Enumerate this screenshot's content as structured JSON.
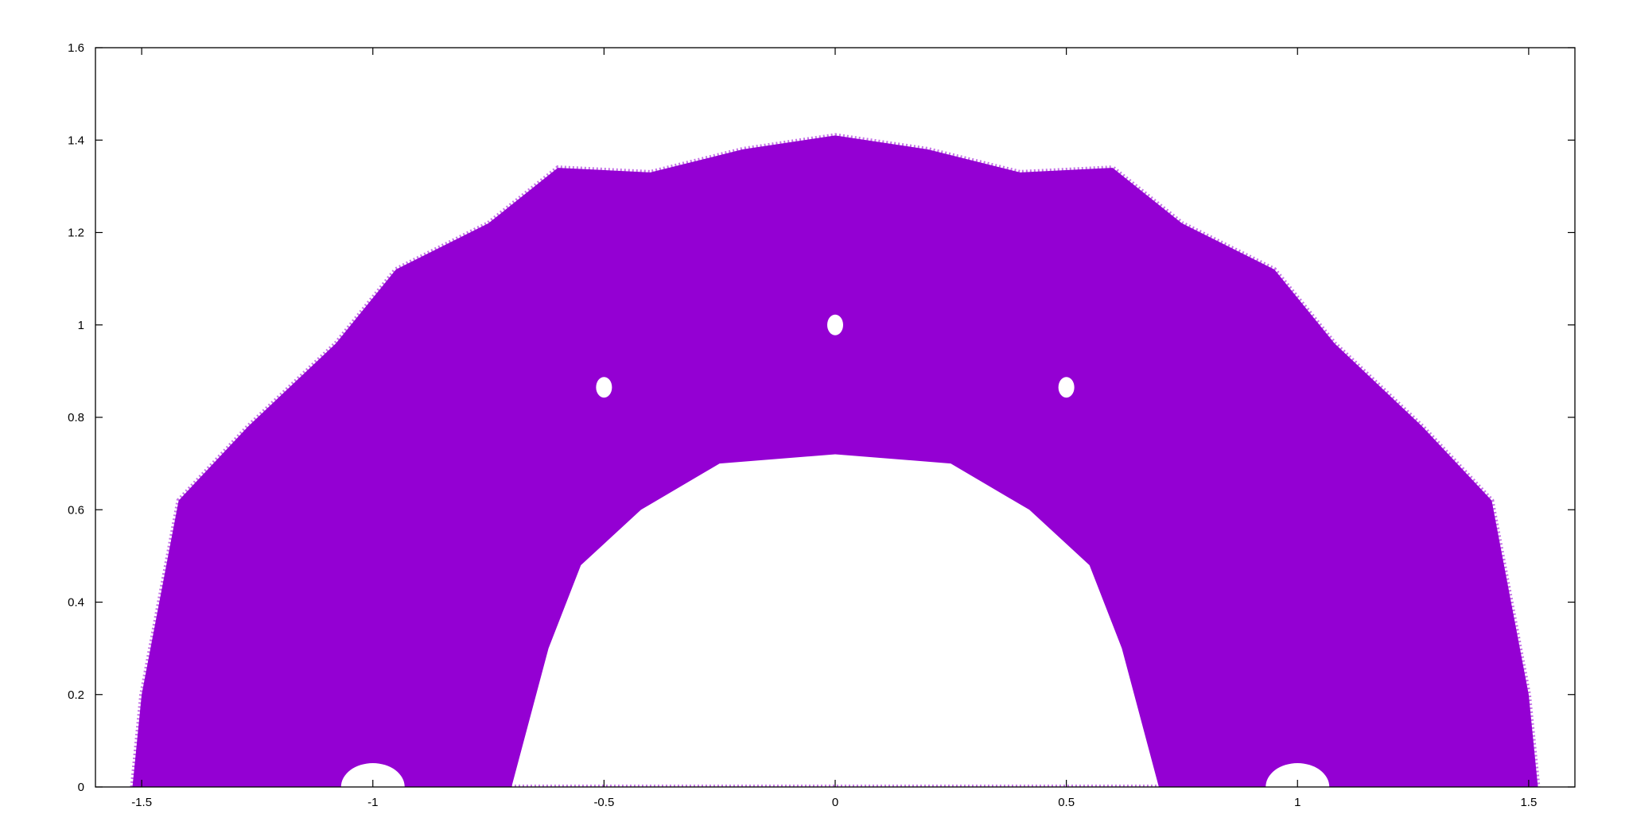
{
  "chart_data": {
    "type": "scatter",
    "title": "",
    "xlabel": "",
    "ylabel": "",
    "xlim": [
      -1.6,
      1.6
    ],
    "ylim": [
      0,
      1.6
    ],
    "xticks": [
      -1.5,
      -1,
      -0.5,
      0,
      0.5,
      1,
      1.5
    ],
    "xtick_labels": [
      "-1.5",
      "-1",
      "-0.5",
      "0",
      "0.5",
      "1",
      "1.5"
    ],
    "yticks": [
      0,
      0.2,
      0.4,
      0.6,
      0.8,
      1,
      1.2,
      1.4,
      1.6
    ],
    "ytick_labels": [
      "0",
      "0.2",
      "0.4",
      "0.6",
      "0.8",
      "1",
      "1.2",
      "1.4",
      "1.6"
    ],
    "grid": false,
    "legend": "none",
    "series": [
      {
        "color": "#9400d3",
        "marker": "dot",
        "description_points": "dense fractal point cloud, symmetric about x = 0",
        "outer_boundary": [
          [
            -1.52,
            0.0
          ],
          [
            -1.5,
            0.2
          ],
          [
            -1.42,
            0.62
          ],
          [
            -1.27,
            0.78
          ],
          [
            -1.08,
            0.96
          ],
          [
            -0.95,
            1.12
          ],
          [
            -0.75,
            1.22
          ],
          [
            -0.6,
            1.34
          ],
          [
            -0.4,
            1.33
          ],
          [
            -0.2,
            1.38
          ],
          [
            0.0,
            1.41
          ],
          [
            0.2,
            1.38
          ],
          [
            0.4,
            1.33
          ],
          [
            0.6,
            1.34
          ],
          [
            0.75,
            1.22
          ],
          [
            0.95,
            1.12
          ],
          [
            1.08,
            0.96
          ],
          [
            1.27,
            0.78
          ],
          [
            1.42,
            0.62
          ],
          [
            1.5,
            0.2
          ],
          [
            1.52,
            0.0
          ]
        ],
        "inner_boundary": [
          [
            -0.7,
            0.0
          ],
          [
            -0.62,
            0.3
          ],
          [
            -0.55,
            0.48
          ],
          [
            -0.42,
            0.6
          ],
          [
            -0.25,
            0.7
          ],
          [
            0.0,
            0.72
          ],
          [
            0.25,
            0.7
          ],
          [
            0.42,
            0.6
          ],
          [
            0.55,
            0.48
          ],
          [
            0.62,
            0.3
          ],
          [
            0.7,
            0.0
          ]
        ],
        "holes": [
          [
            0.0,
            1.0
          ],
          [
            -0.5,
            0.865
          ],
          [
            0.5,
            0.865
          ],
          [
            -1.0,
            0.0
          ],
          [
            1.0,
            0.0
          ]
        ]
      }
    ]
  }
}
